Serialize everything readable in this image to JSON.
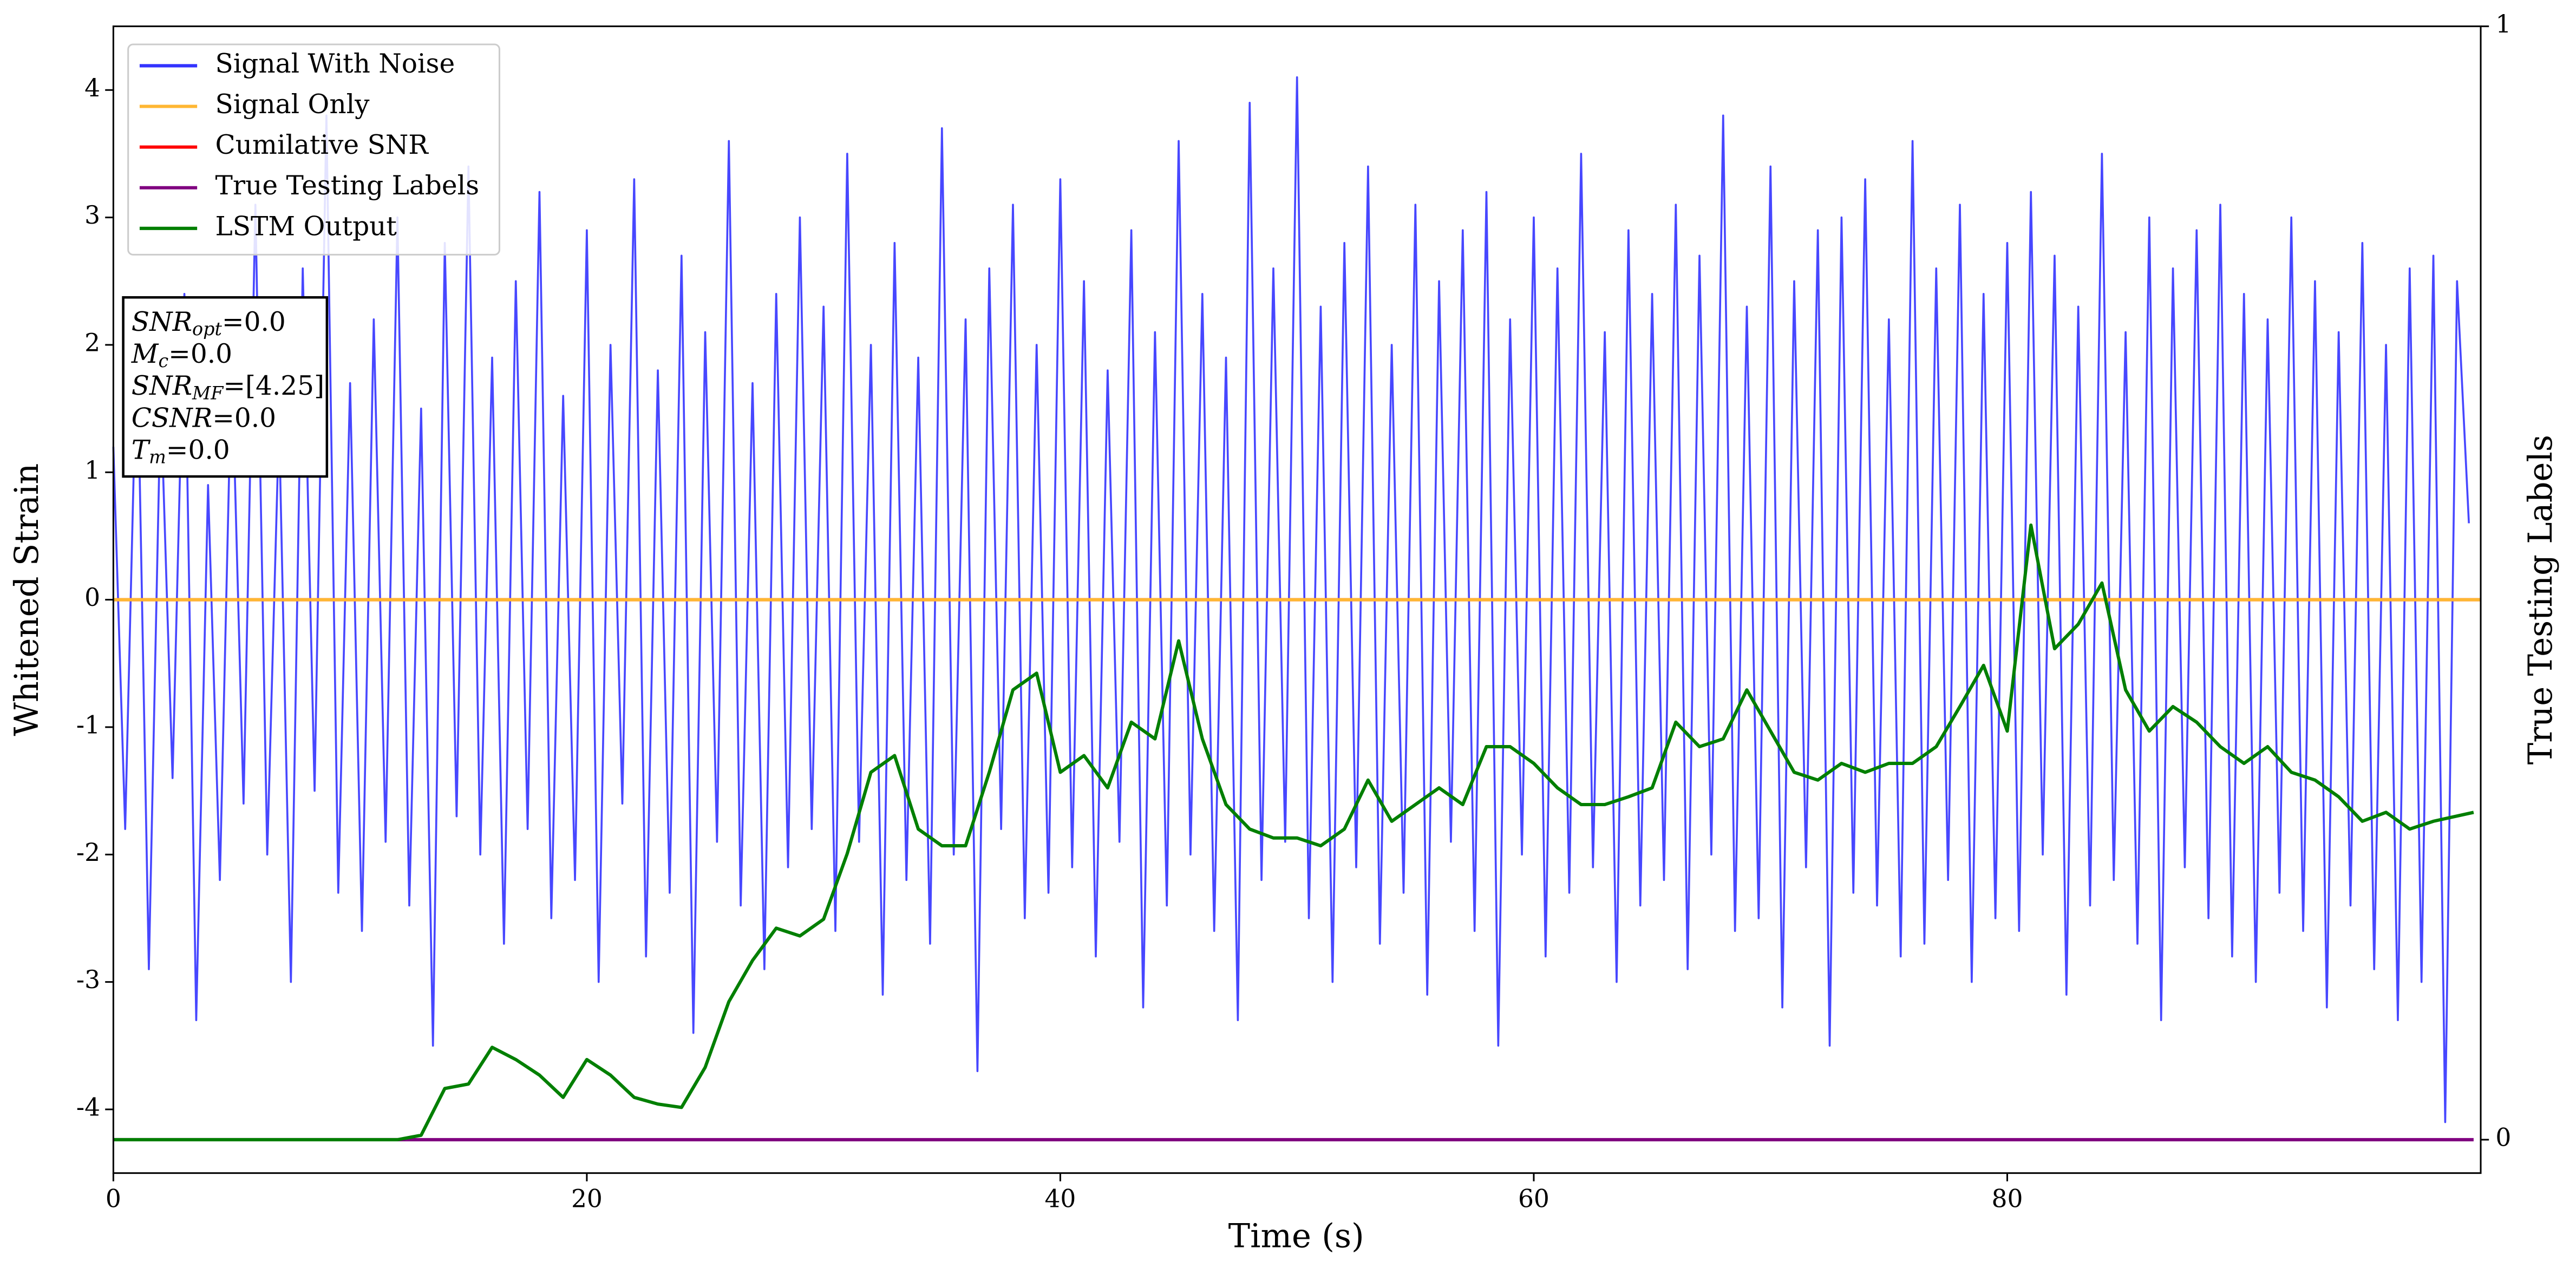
{
  "chart_data": {
    "type": "line",
    "xlabel": "Time (s)",
    "ylabel": "Whitened Strain",
    "y2label": "True Testing Labels",
    "xlim": [
      0,
      100
    ],
    "xticks": [
      0,
      20,
      40,
      60,
      80
    ],
    "ylim": [
      -4.5,
      4.5
    ],
    "yticks": [
      -4,
      -3,
      -2,
      -1,
      0,
      1,
      2,
      3,
      4
    ],
    "y2lim": [
      -0.03,
      1
    ],
    "y2ticks": [
      0,
      1
    ],
    "legend": "upper left",
    "annotation": [
      {
        "symbol": "SNR",
        "sub": "opt",
        "text": "=0.0"
      },
      {
        "symbol": "M",
        "sub": "c",
        "text": "=0.0"
      },
      {
        "symbol": "SNR",
        "sub": "MF",
        "text": "=[4.25]"
      },
      {
        "symbol": "CSNR",
        "text": "=0.0"
      },
      {
        "symbol": "T",
        "sub": "m",
        "text": "=0.0"
      }
    ],
    "series": [
      {
        "name": "Signal With Noise",
        "color": "#3333ff",
        "x": [
          0,
          0.5,
          1,
          1.5,
          2,
          2.5,
          3,
          3.5,
          4,
          4.5,
          5,
          5.5,
          6,
          6.5,
          7,
          7.5,
          8,
          8.5,
          9,
          9.5,
          10,
          10.5,
          11,
          11.5,
          12,
          12.5,
          13,
          13.5,
          14,
          14.5,
          15,
          15.5,
          16,
          16.5,
          17,
          17.5,
          18,
          18.5,
          19,
          19.5,
          20,
          20.5,
          21,
          21.5,
          22,
          22.5,
          23,
          23.5,
          24,
          24.5,
          25,
          25.5,
          26,
          26.5,
          27,
          27.5,
          28,
          28.5,
          29,
          29.5,
          30,
          30.5,
          31,
          31.5,
          32,
          32.5,
          33,
          33.5,
          34,
          34.5,
          35,
          35.5,
          36,
          36.5,
          37,
          37.5,
          38,
          38.5,
          39,
          39.5,
          40,
          40.5,
          41,
          41.5,
          42,
          42.5,
          43,
          43.5,
          44,
          44.5,
          45,
          45.5,
          46,
          46.5,
          47,
          47.5,
          48,
          48.5,
          49,
          49.5,
          50,
          50.5,
          51,
          51.5,
          52,
          52.5,
          53,
          53.5,
          54,
          54.5,
          55,
          55.5,
          56,
          56.5,
          57,
          57.5,
          58,
          58.5,
          59,
          59.5,
          60,
          60.5,
          61,
          61.5,
          62,
          62.5,
          63,
          63.5,
          64,
          64.5,
          65,
          65.5,
          66,
          66.5,
          67,
          67.5,
          68,
          68.5,
          69,
          69.5,
          70,
          70.5,
          71,
          71.5,
          72,
          72.5,
          73,
          73.5,
          74,
          74.5,
          75,
          75.5,
          76,
          76.5,
          77,
          77.5,
          78,
          78.5,
          79,
          79.5,
          80,
          80.5,
          81,
          81.5,
          82,
          82.5,
          83,
          83.5,
          84,
          84.5,
          85,
          85.5,
          86,
          86.5,
          87,
          87.5,
          88,
          88.5,
          89,
          89.5,
          90,
          90.5,
          91,
          91.5,
          92,
          92.5,
          93,
          93.5,
          94,
          94.5,
          95,
          95.5,
          96,
          96.5,
          97,
          97.5,
          98,
          98.5,
          99,
          99.5
        ],
        "values": [
          1.2,
          -1.8,
          2.1,
          -2.9,
          1.6,
          -1.4,
          2.4,
          -3.3,
          0.9,
          -2.2,
          1.9,
          -1.6,
          3.1,
          -2.0,
          1.4,
          -3.0,
          2.6,
          -1.5,
          3.8,
          -2.3,
          1.7,
          -2.6,
          2.2,
          -1.9,
          3.0,
          -2.4,
          1.5,
          -3.5,
          2.8,
          -1.7,
          3.4,
          -2.0,
          1.9,
          -2.7,
          2.5,
          -1.8,
          3.2,
          -2.5,
          1.6,
          -2.2,
          2.9,
          -3.0,
          2.0,
          -1.6,
          3.3,
          -2.8,
          1.8,
          -2.3,
          2.7,
          -3.4,
          2.1,
          -1.9,
          3.6,
          -2.4,
          1.7,
          -2.9,
          2.4,
          -2.1,
          3.0,
          -1.8,
          2.3,
          -2.6,
          3.5,
          -1.9,
          2.0,
          -3.1,
          2.8,
          -2.2,
          1.9,
          -2.7,
          3.7,
          -2.0,
          2.2,
          -3.7,
          2.6,
          -1.8,
          3.1,
          -2.5,
          2.0,
          -2.3,
          3.3,
          -2.1,
          2.5,
          -2.8,
          1.8,
          -1.9,
          2.9,
          -3.2,
          2.1,
          -2.4,
          3.6,
          -2.0,
          2.4,
          -2.6,
          1.9,
          -3.3,
          3.9,
          -2.2,
          2.6,
          -1.9,
          4.1,
          -2.5,
          2.3,
          -3.0,
          2.8,
          -2.1,
          3.4,
          -2.7,
          2.0,
          -2.3,
          3.1,
          -3.1,
          2.5,
          -1.9,
          2.9,
          -2.6,
          3.2,
          -3.5,
          2.2,
          -2.0,
          3.0,
          -2.8,
          2.6,
          -2.3,
          3.5,
          -2.1,
          2.1,
          -3.0,
          2.9,
          -2.4,
          2.4,
          -2.2,
          3.1,
          -2.9,
          2.7,
          -2.0,
          3.8,
          -2.6,
          2.3,
          -2.5,
          3.4,
          -3.2,
          2.5,
          -2.1,
          2.9,
          -3.5,
          3.0,
          -2.3,
          3.3,
          -2.4,
          2.2,
          -2.8,
          3.6,
          -2.7,
          2.6,
          -2.2,
          3.1,
          -3.0,
          2.4,
          -2.5,
          2.8,
          -2.6,
          3.2,
          -2.0,
          2.7,
          -3.1,
          2.3,
          -2.4,
          3.5,
          -2.2,
          2.1,
          -2.7,
          3.0,
          -3.3,
          2.6,
          -2.1,
          2.9,
          -2.5,
          3.1,
          -2.8,
          2.4,
          -3.0,
          2.2,
          -2.3,
          3.0,
          -2.6,
          2.5,
          -3.2,
          2.1,
          -2.4,
          2.8,
          -2.9,
          2.0,
          -3.3,
          2.6,
          -3.0,
          2.7,
          -4.1,
          2.5,
          0.6
        ]
      },
      {
        "name": "Signal Only",
        "color": "#ffb733",
        "x": [
          0,
          100
        ],
        "values": [
          0,
          0
        ]
      },
      {
        "name": "Cumilative SNR",
        "color": "#ff0000",
        "x": [
          0,
          100
        ],
        "values": [
          0,
          0
        ]
      },
      {
        "name": "True Testing Labels",
        "color": "#800080",
        "axis": "y2",
        "x": [
          0,
          99.7
        ],
        "values": [
          0,
          0
        ]
      },
      {
        "name": "LSTM Output",
        "color": "#007f00",
        "axis": "y2",
        "x": [
          0,
          12,
          13,
          14,
          15,
          16,
          17,
          18,
          19,
          20,
          21,
          22,
          23,
          24,
          25,
          26,
          27,
          28,
          29,
          30,
          31,
          32,
          33,
          34,
          35,
          36,
          37,
          38,
          39,
          40,
          41,
          42,
          43,
          44,
          45,
          46,
          47,
          48,
          49,
          50,
          51,
          52,
          53,
          54,
          55,
          56,
          57,
          58,
          59,
          60,
          61,
          62,
          63,
          64,
          65,
          66,
          67,
          68,
          69,
          70,
          71,
          72,
          73,
          74,
          75,
          76,
          77,
          78,
          79,
          80,
          81,
          82,
          83,
          84,
          85,
          86,
          87,
          88,
          89,
          90,
          91,
          92,
          93,
          94,
          95,
          96,
          97,
          98,
          99.7
        ],
        "values": [
          0,
          0,
          0.004,
          0.046,
          0.05,
          0.083,
          0.072,
          0.058,
          0.038,
          0.072,
          0.058,
          0.038,
          0.032,
          0.029,
          0.065,
          0.124,
          0.161,
          0.19,
          0.183,
          0.198,
          0.257,
          0.33,
          0.345,
          0.279,
          0.264,
          0.264,
          0.33,
          0.404,
          0.419,
          0.33,
          0.345,
          0.316,
          0.375,
          0.36,
          0.448,
          0.36,
          0.301,
          0.279,
          0.271,
          0.271,
          0.264,
          0.279,
          0.323,
          0.286,
          0.301,
          0.316,
          0.301,
          0.353,
          0.353,
          0.338,
          0.316,
          0.301,
          0.301,
          0.308,
          0.316,
          0.375,
          0.353,
          0.36,
          0.404,
          0.367,
          0.33,
          0.323,
          0.338,
          0.33,
          0.338,
          0.338,
          0.353,
          0.389,
          0.426,
          0.367,
          0.552,
          0.441,
          0.463,
          0.5,
          0.404,
          0.367,
          0.389,
          0.375,
          0.353,
          0.338,
          0.353,
          0.33,
          0.323,
          0.308,
          0.286,
          0.294,
          0.279,
          0.286,
          0.294
        ]
      }
    ]
  }
}
